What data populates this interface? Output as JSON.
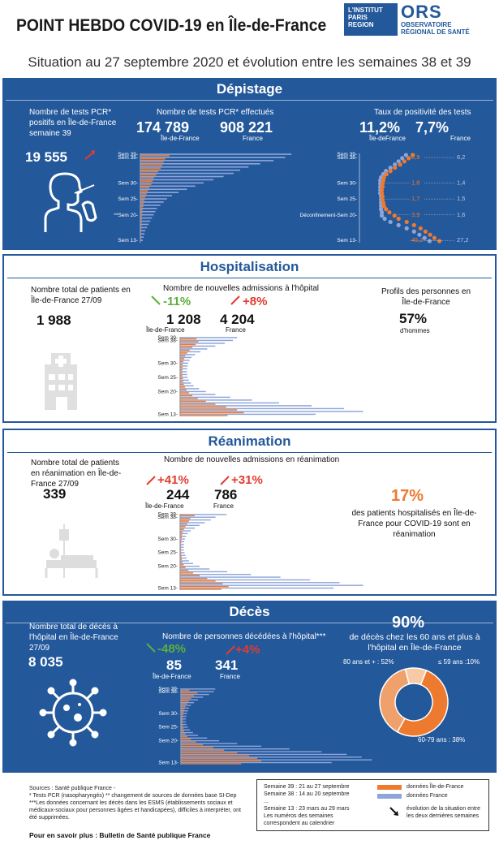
{
  "header": {
    "title": "POINT HEBDO COVID-19 en Île-de-France",
    "logo_institut": [
      "L'INSTITUT",
      "PARIS",
      "REGION"
    ],
    "logo_ors": "ORS",
    "logo_ors_sub": [
      "OBSERVATOIRE",
      "RÉGIONAL DE SANTÉ"
    ],
    "subtitle": "Situation au 27 septembre 2020 et évolution entre les semaines 38 et 39"
  },
  "depistage": {
    "title": "Dépistage",
    "pcr_positive_label": "Nombre de tests PCR* positifs en Île-de-France semaine 39",
    "pcr_positive_value": "19 555",
    "tests_label": "Nombre de tests PCR* effectués",
    "tests_idf": "174 789",
    "tests_idf_label": "Île-de-France",
    "tests_fr": "908 221",
    "tests_fr_label": "France",
    "positivity_label": "Taux de positivité des tests",
    "positivity_idf": "11,2%",
    "positivity_idf_label": "Île-deFrance",
    "positivity_fr": "7,7%",
    "positivity_fr_label": "France",
    "ticks": [
      "Sem 39-",
      "Sem 38-",
      "Sem 30-",
      "Sem 25-",
      "**Sem 20-",
      "Sem 13-"
    ],
    "pos_ticks": [
      "Sem 39-",
      "Sem 38-",
      "Sem 30-",
      "Sem 25-",
      "Déconfinement-Sem 20-",
      "Sem 13-"
    ],
    "pos_idf_values": [
      "8,9",
      "1,8",
      "1,7",
      "3,9",
      "45,2"
    ],
    "pos_fr_values": [
      "6,2",
      "1,4",
      "1,5",
      "1,6",
      "27,2"
    ]
  },
  "hospitalisation": {
    "title": "Hospitalisation",
    "total_label": "Nombre total de patients en Île-de-France 27/09",
    "total_value": "1 988",
    "admissions_label": "Nombre de nouvelles admissions à l'hôpital",
    "evo_idf": "-11%",
    "evo_fr": "+8%",
    "adm_idf": "1 208",
    "adm_idf_label": "Île-de-France",
    "adm_fr": "4 204",
    "adm_fr_label": "France",
    "profile_label": "Profils des personnes en Île-de-France",
    "profile_value": "57%",
    "profile_sub": "d'hommes",
    "ticks": [
      "Sem 39-",
      "Sem 38-",
      "Sem 30-",
      "Sem 25-",
      "Sem 20-",
      "Sem 13-"
    ]
  },
  "reanimation": {
    "title": "Réanimation",
    "total_label": "Nombre total de patients en réanimation en Île-de-France 27/09",
    "total_value": "339",
    "admissions_label": "Nombre de nouvelles admissions en réanimation",
    "evo_idf": "+41%",
    "evo_fr": "+31%",
    "adm_idf": "244",
    "adm_idf_label": "Île-de-France",
    "adm_fr": "786",
    "adm_fr_label": "France",
    "share_value": "17%",
    "share_label": "des patients hospitalisés en Île-de-France pour COVID-19 sont en réanimation",
    "ticks": [
      "Sem 39-",
      "Sem 38-",
      "Sem 30-",
      "Sem 25-",
      "Sem 20-",
      "Sem 13-"
    ]
  },
  "deces": {
    "title": "Décès",
    "total_label": "Nombre total de décès à l'hôpital en Île-de-France 27/09",
    "total_value": "8 035",
    "deaths_label": "Nombre de personnes décédées à l'hôpital***",
    "evo_idf": "-48%",
    "evo_fr": "+4%",
    "d_idf": "85",
    "d_idf_label": "Île-de-France",
    "d_fr": "341",
    "d_fr_label": "France",
    "age_value": "90%",
    "age_label": "de décès chez les 60 ans et plus à l'hôpital en Île-de-France",
    "slice_80": "80 ans et + : 52%",
    "slice_59": "≤ 59 ans :10%",
    "slice_6079": "60-79 ans : 38%",
    "ticks": [
      "Sem 39-",
      "Sem 38-",
      "Sem 30-",
      "Sem 25-",
      "Sem 20-",
      "Sem 13-"
    ]
  },
  "footer": {
    "sources": "Sources : Santé publique France -",
    "note1": "* Tests PCR (nasopharyngés) ** changement de sources de données base SI-Dep",
    "note2": "***Les données concernant les décès dans les ESMS (établissements sociaux et médicaux-sociaux pour personnes âgées et handicapées), difficiles à interpréter, ont été supprimées.",
    "more": "Pour en savoir plus : Bulletin de Santé publique France",
    "legend_weeks": [
      "Semaine 39 : 21 au 27 septembre",
      "Semaine 38 : 14 au 20 septembre",
      "...",
      "Semaine 13 : 23 mars au 29 mars",
      "Les numéros des semaines correspondent au calendrier"
    ],
    "legend_idf": "données Île-de-France",
    "legend_fr": "données France",
    "legend_arrow": "évolution de la situation entre les deux dernières semaines"
  },
  "colors": {
    "blue": "#23589b",
    "orange": "#ee7a2f",
    "lightblue": "#8ea5d8",
    "red": "#e23c30",
    "green": "#5caf3c"
  },
  "chart_data": [
    {
      "type": "bar",
      "name": "tests_pcr",
      "series": [
        {
          "name": "Île-de-France",
          "values": [
            174789,
            151000,
            140000,
            132000,
            122000,
            108000,
            95000,
            82000,
            74000,
            66000,
            55000,
            46000,
            38000,
            30000,
            25000,
            20000,
            17000,
            14000,
            12000,
            10000,
            9000,
            8000,
            7000,
            6000,
            5000,
            4000,
            3500,
            3000
          ]
        },
        {
          "name": "France",
          "values": [
            908221,
            870000,
            800000,
            720000,
            650000,
            600000,
            560000,
            500000,
            440000,
            380000,
            330000,
            280000,
            230000,
            190000,
            160000,
            140000,
            120000,
            100000,
            90000,
            80000,
            70000,
            60000,
            50000,
            40000,
            30000,
            25000,
            20000,
            15000
          ]
        }
      ]
    },
    {
      "type": "scatter",
      "name": "positivite",
      "series": [
        {
          "name": "Île-de-France",
          "values": [
            11.2,
            8.9,
            7.0,
            5.5,
            4.0,
            3.0,
            2.3,
            1.9,
            1.8,
            1.7,
            1.7,
            1.6,
            1.6,
            1.7,
            1.7,
            1.8,
            1.9,
            2.2,
            2.8,
            3.9,
            5,
            8,
            12,
            17,
            22,
            28,
            35,
            45.2
          ]
        },
        {
          "name": "France",
          "values": [
            7.7,
            6.2,
            5.0,
            4.0,
            3.0,
            2.2,
            1.8,
            1.5,
            1.4,
            1.4,
            1.4,
            1.4,
            1.4,
            1.5,
            1.5,
            1.5,
            1.5,
            1.5,
            1.6,
            1.6,
            2,
            3,
            5,
            8,
            12,
            16,
            21,
            27.2
          ]
        }
      ]
    },
    {
      "type": "bar",
      "name": "hospitalisations",
      "series": [
        {
          "name": "Île-de-France",
          "values": [
            1208,
            1357,
            1150,
            900,
            700,
            520,
            380,
            300,
            240,
            200,
            180,
            170,
            160,
            170,
            200,
            230,
            280,
            360,
            480,
            650,
            900,
            1300,
            1900,
            2600,
            3400,
            4200,
            4700,
            3500
          ]
        },
        {
          "name": "France",
          "values": [
            4204,
            3893,
            3300,
            2600,
            2000,
            1500,
            1100,
            850,
            700,
            600,
            550,
            520,
            500,
            520,
            550,
            650,
            800,
            1000,
            1400,
            1900,
            2600,
            3700,
            5300,
            7300,
            9700,
            12100,
            13500,
            10000
          ]
        }
      ]
    },
    {
      "type": "bar",
      "name": "reanimations",
      "series": [
        {
          "name": "Île-de-France",
          "values": [
            244,
            173,
            150,
            120,
            90,
            65,
            45,
            35,
            28,
            22,
            18,
            16,
            15,
            17,
            20,
            25,
            30,
            40,
            60,
            90,
            140,
            220,
            330,
            460,
            600,
            720,
            820,
            700
          ]
        },
        {
          "name": "France",
          "values": [
            786,
            600,
            520,
            420,
            330,
            250,
            180,
            130,
            100,
            80,
            70,
            65,
            60,
            65,
            75,
            90,
            110,
            150,
            220,
            330,
            500,
            800,
            1200,
            1700,
            2200,
            2700,
            3100,
            2600
          ]
        }
      ]
    },
    {
      "type": "bar",
      "name": "deces",
      "series": [
        {
          "name": "Île-de-France",
          "values": [
            85,
            164,
            130,
            100,
            80,
            60,
            45,
            35,
            28,
            24,
            20,
            18,
            17,
            20,
            25,
            32,
            45,
            65,
            100,
            150,
            220,
            320,
            430,
            560,
            680,
            760,
            800,
            600
          ]
        },
        {
          "name": "France",
          "values": [
            341,
            328,
            280,
            220,
            170,
            130,
            100,
            80,
            70,
            62,
            55,
            50,
            48,
            55,
            70,
            90,
            120,
            170,
            260,
            380,
            560,
            800,
            1080,
            1400,
            1650,
            1800,
            1900,
            1500
          ]
        }
      ]
    },
    {
      "type": "pie",
      "name": "age_deces",
      "labels": [
        "80 ans et +",
        "60-79 ans",
        "≤ 59 ans"
      ],
      "values": [
        52,
        38,
        10
      ]
    }
  ]
}
